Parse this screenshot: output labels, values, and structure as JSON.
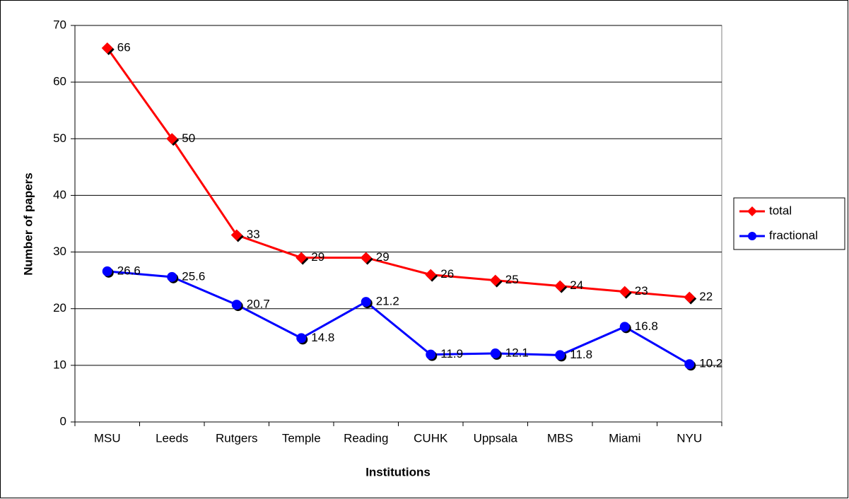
{
  "chart_data": {
    "type": "line",
    "x_label": "Institutions",
    "y_label": "Number of papers",
    "categories": [
      "MSU",
      "Leeds",
      "Rutgers",
      "Temple",
      "Reading",
      "CUHK",
      "Uppsala",
      "MBS",
      "Miami",
      "NYU"
    ],
    "series": [
      {
        "name": "total",
        "color": "#ff0000",
        "marker": "diamond",
        "values": [
          66,
          50,
          33,
          29,
          29,
          26,
          25,
          24,
          23,
          22
        ]
      },
      {
        "name": "fractional",
        "color": "#0000ff",
        "marker": "circle",
        "values": [
          26.6,
          25.6,
          20.7,
          14.8,
          21.2,
          11.9,
          12.1,
          11.8,
          16.8,
          10.2
        ]
      }
    ],
    "ylim": [
      0,
      70
    ],
    "yticks": [
      0,
      10,
      20,
      30,
      40,
      50,
      60,
      70
    ],
    "grid": true,
    "legend": "right"
  }
}
